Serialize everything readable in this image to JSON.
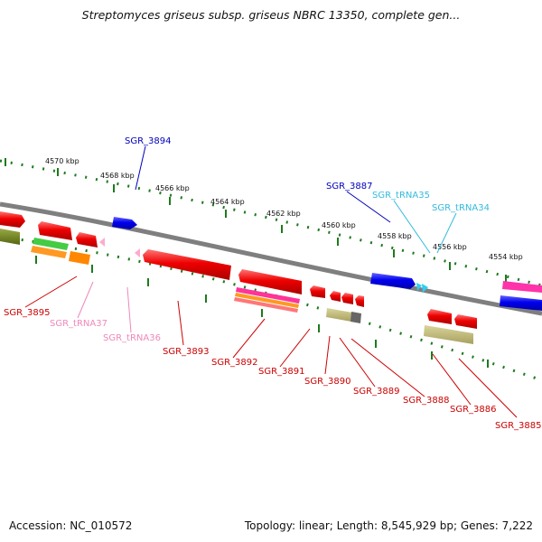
{
  "title": "Streptomyces griseus subsp. griseus NBRC 13350, complete gen...",
  "accession": "Accession: NC_010572",
  "stats": "Topology: linear; Length: 8,545,929 bp; Genes: 7,222",
  "colors": {
    "background": "#ffffff",
    "backbone": "#7f7f7f",
    "tick": "#1e7a1e",
    "red_label": "#cc0000",
    "blue_label": "#0000bb",
    "cyan_label": "#33bbdd",
    "pink_label": "#ee88bb"
  },
  "scale_labels": [
    "4570 kbp",
    "4568 kbp",
    "4566 kbp",
    "4564 kbp",
    "4562 kbp",
    "4560 kbp",
    "4558 kbp",
    "4556 kbp",
    "4554 kbp"
  ],
  "gene_labels": {
    "sgr_3894": "SGR_3894",
    "sgr_3887": "SGR_3887",
    "sgr_trna35": "SGR_tRNA35",
    "sgr_trna34": "SGR_tRNA34",
    "sgr_3895": "SGR_3895",
    "sgr_trna37": "SGR_tRNA37",
    "sgr_trna36": "SGR_tRNA36",
    "sgr_3893": "SGR_3893",
    "sgr_3892": "SGR_3892",
    "sgr_3891": "SGR_3891",
    "sgr_3890": "SGR_3890",
    "sgr_3889": "SGR_3889",
    "sgr_3888": "SGR_3888",
    "sgr_3886": "SGR_3886",
    "sgr_3885": "SGR_3885"
  }
}
